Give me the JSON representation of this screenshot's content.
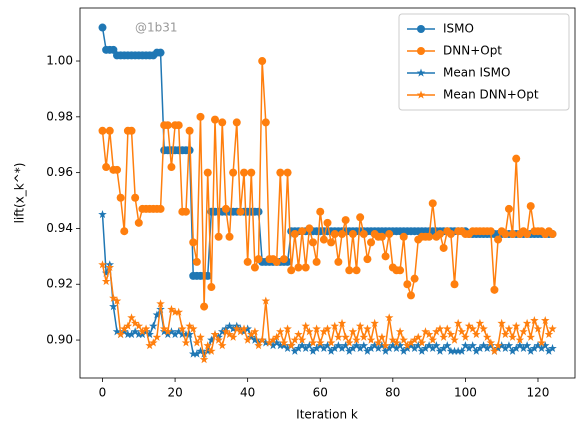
{
  "chart_data": {
    "type": "line",
    "y_label": "lift(x_k^*)",
    "x_label": "Iteration k",
    "watermark": "@1b31",
    "legend": "upper right",
    "xlim": [
      -6.2,
      130.2
    ],
    "xticks": [
      0,
      20,
      40,
      60,
      80,
      100,
      120
    ],
    "ylim": [
      0.8864,
      1.019
    ],
    "yticks": [
      {
        "value": 0.9,
        "label": "0.90"
      },
      0.92,
      0.94,
      0.96,
      0.98,
      {
        "value": 1,
        "label": "1.00"
      }
    ],
    "x": [
      0,
      1,
      2,
      3,
      4,
      5,
      6,
      7,
      8,
      9,
      10,
      11,
      12,
      13,
      14,
      15,
      16,
      17,
      18,
      19,
      20,
      21,
      22,
      23,
      24,
      25,
      26,
      27,
      28,
      29,
      30,
      31,
      32,
      33,
      34,
      35,
      36,
      37,
      38,
      39,
      40,
      41,
      42,
      43,
      44,
      45,
      46,
      47,
      48,
      49,
      50,
      51,
      52,
      53,
      54,
      55,
      56,
      57,
      58,
      59,
      60,
      61,
      62,
      63,
      64,
      65,
      66,
      67,
      68,
      69,
      70,
      71,
      72,
      73,
      74,
      75,
      76,
      77,
      78,
      79,
      80,
      81,
      82,
      83,
      84,
      85,
      86,
      87,
      88,
      89,
      90,
      91,
      92,
      93,
      94,
      95,
      96,
      97,
      98,
      99,
      100,
      101,
      102,
      103,
      104,
      105,
      106,
      107,
      108,
      109,
      110,
      111,
      112,
      113,
      114,
      115,
      116,
      117,
      118,
      119,
      120,
      121,
      122,
      123,
      124
    ],
    "series": [
      {
        "name": "ISMO",
        "color": "#1f77b4",
        "marker": "o",
        "values": [
          1.012,
          1.004,
          1.004,
          1.004,
          1.002,
          1.002,
          1.002,
          1.002,
          1.002,
          1.002,
          1.002,
          1.002,
          1.002,
          1.002,
          1.002,
          1.003,
          1.003,
          0.968,
          0.968,
          0.968,
          0.968,
          0.968,
          0.968,
          0.968,
          0.968,
          0.923,
          0.923,
          0.923,
          0.923,
          0.923,
          0.946,
          0.946,
          0.946,
          0.946,
          0.946,
          0.946,
          0.946,
          0.946,
          0.946,
          0.946,
          0.946,
          0.946,
          0.946,
          0.946,
          0.928,
          0.928,
          0.928,
          0.928,
          0.928,
          0.928,
          0.928,
          0.928,
          0.939,
          0.939,
          0.939,
          0.939,
          0.939,
          0.939,
          0.939,
          0.939,
          0.939,
          0.939,
          0.939,
          0.939,
          0.939,
          0.939,
          0.939,
          0.939,
          0.939,
          0.939,
          0.939,
          0.939,
          0.939,
          0.939,
          0.939,
          0.939,
          0.939,
          0.939,
          0.939,
          0.939,
          0.939,
          0.939,
          0.939,
          0.939,
          0.939,
          0.939,
          0.939,
          0.939,
          0.939,
          0.939,
          0.939,
          0.939,
          0.939,
          0.939,
          0.939,
          0.939,
          0.939,
          0.939,
          0.939,
          0.939,
          0.939,
          0.938,
          0.938,
          0.938,
          0.938,
          0.938,
          0.938,
          0.938,
          0.938,
          0.938,
          0.938,
          0.938,
          0.938,
          0.938,
          0.938,
          0.938,
          0.938,
          0.938,
          0.938,
          0.938,
          0.938,
          0.938,
          0.938,
          0.938,
          0.938
        ]
      },
      {
        "name": "DNN+Opt",
        "color": "#ff7f0e",
        "marker": "o",
        "values": [
          0.975,
          0.962,
          0.975,
          0.961,
          0.961,
          0.951,
          0.939,
          0.975,
          0.975,
          0.951,
          0.942,
          0.947,
          0.947,
          0.947,
          0.947,
          0.947,
          0.947,
          0.977,
          0.977,
          0.962,
          0.977,
          0.977,
          0.946,
          0.946,
          0.975,
          0.935,
          0.928,
          0.98,
          0.912,
          0.96,
          0.919,
          0.979,
          0.937,
          0.978,
          0.947,
          0.937,
          0.96,
          0.978,
          0.946,
          0.96,
          0.928,
          0.96,
          0.926,
          0.929,
          1.0,
          0.978,
          0.929,
          0.929,
          0.928,
          0.96,
          0.929,
          0.96,
          0.925,
          0.938,
          0.926,
          0.939,
          0.926,
          0.94,
          0.935,
          0.928,
          0.946,
          0.936,
          0.942,
          0.935,
          0.938,
          0.928,
          0.938,
          0.943,
          0.925,
          0.938,
          0.925,
          0.944,
          0.938,
          0.929,
          0.935,
          0.938,
          0.937,
          0.937,
          0.93,
          0.938,
          0.926,
          0.925,
          0.925,
          0.937,
          0.92,
          0.916,
          0.922,
          0.936,
          0.937,
          0.937,
          0.937,
          0.949,
          0.937,
          0.938,
          0.933,
          0.939,
          0.938,
          0.92,
          0.939,
          0.939,
          0.938,
          0.938,
          0.939,
          0.939,
          0.939,
          0.939,
          0.939,
          0.939,
          0.918,
          0.936,
          0.939,
          0.938,
          0.947,
          0.938,
          0.965,
          0.938,
          0.939,
          0.938,
          0.948,
          0.939,
          0.939,
          0.939,
          0.938,
          0.939,
          0.938
        ]
      },
      {
        "name": "Mean ISMO",
        "color": "#1f77b4",
        "marker": "*",
        "values": [
          0.945,
          0.924,
          0.927,
          0.912,
          0.903,
          0.902,
          0.903,
          0.902,
          0.902,
          0.903,
          0.902,
          0.902,
          0.903,
          0.902,
          0.905,
          0.909,
          0.911,
          0.903,
          0.902,
          0.903,
          0.902,
          0.903,
          0.902,
          0.902,
          0.902,
          0.895,
          0.895,
          0.896,
          0.895,
          0.896,
          0.9,
          0.902,
          0.901,
          0.903,
          0.904,
          0.905,
          0.904,
          0.905,
          0.904,
          0.903,
          0.904,
          0.901,
          0.9,
          0.899,
          0.9,
          0.899,
          0.899,
          0.898,
          0.899,
          0.898,
          0.898,
          0.897,
          0.898,
          0.896,
          0.897,
          0.898,
          0.897,
          0.898,
          0.896,
          0.897,
          0.898,
          0.897,
          0.898,
          0.896,
          0.897,
          0.898,
          0.897,
          0.898,
          0.896,
          0.897,
          0.898,
          0.897,
          0.898,
          0.896,
          0.897,
          0.898,
          0.897,
          0.898,
          0.896,
          0.897,
          0.898,
          0.897,
          0.898,
          0.896,
          0.897,
          0.898,
          0.897,
          0.898,
          0.896,
          0.897,
          0.898,
          0.897,
          0.898,
          0.896,
          0.897,
          0.898,
          0.896,
          0.896,
          0.896,
          0.896,
          0.898,
          0.897,
          0.898,
          0.896,
          0.897,
          0.898,
          0.897,
          0.898,
          0.896,
          0.897,
          0.898,
          0.897,
          0.898,
          0.896,
          0.897,
          0.898,
          0.897,
          0.898,
          0.896,
          0.897,
          0.898,
          0.897,
          0.898,
          0.896,
          0.897
        ]
      },
      {
        "name": "Mean DNN+Opt",
        "color": "#ff7f0e",
        "marker": "*",
        "values": [
          0.927,
          0.921,
          0.926,
          0.915,
          0.914,
          0.902,
          0.904,
          0.905,
          0.908,
          0.906,
          0.905,
          0.903,
          0.904,
          0.898,
          0.899,
          0.901,
          0.913,
          0.904,
          0.903,
          0.911,
          0.91,
          0.91,
          0.904,
          0.899,
          0.905,
          0.904,
          0.899,
          0.901,
          0.893,
          0.898,
          0.896,
          0.902,
          0.9,
          0.898,
          0.903,
          0.902,
          0.901,
          0.904,
          0.903,
          0.904,
          0.9,
          0.902,
          0.903,
          0.898,
          0.9,
          0.914,
          0.899,
          0.9,
          0.901,
          0.903,
          0.899,
          0.904,
          0.898,
          0.9,
          0.902,
          0.9,
          0.905,
          0.903,
          0.899,
          0.904,
          0.899,
          0.903,
          0.904,
          0.899,
          0.905,
          0.901,
          0.906,
          0.901,
          0.899,
          0.903,
          0.9,
          0.905,
          0.901,
          0.904,
          0.9,
          0.906,
          0.899,
          0.901,
          0.898,
          0.908,
          0.9,
          0.899,
          0.903,
          0.9,
          0.898,
          0.899,
          0.9,
          0.901,
          0.899,
          0.903,
          0.902,
          0.9,
          0.903,
          0.904,
          0.901,
          0.904,
          0.902,
          0.9,
          0.906,
          0.903,
          0.901,
          0.905,
          0.904,
          0.902,
          0.906,
          0.904,
          0.901,
          0.899,
          0.896,
          0.898,
          0.906,
          0.902,
          0.904,
          0.901,
          0.905,
          0.9,
          0.903,
          0.906,
          0.901,
          0.907,
          0.904,
          0.899,
          0.907,
          0.902,
          0.904
        ]
      }
    ]
  }
}
